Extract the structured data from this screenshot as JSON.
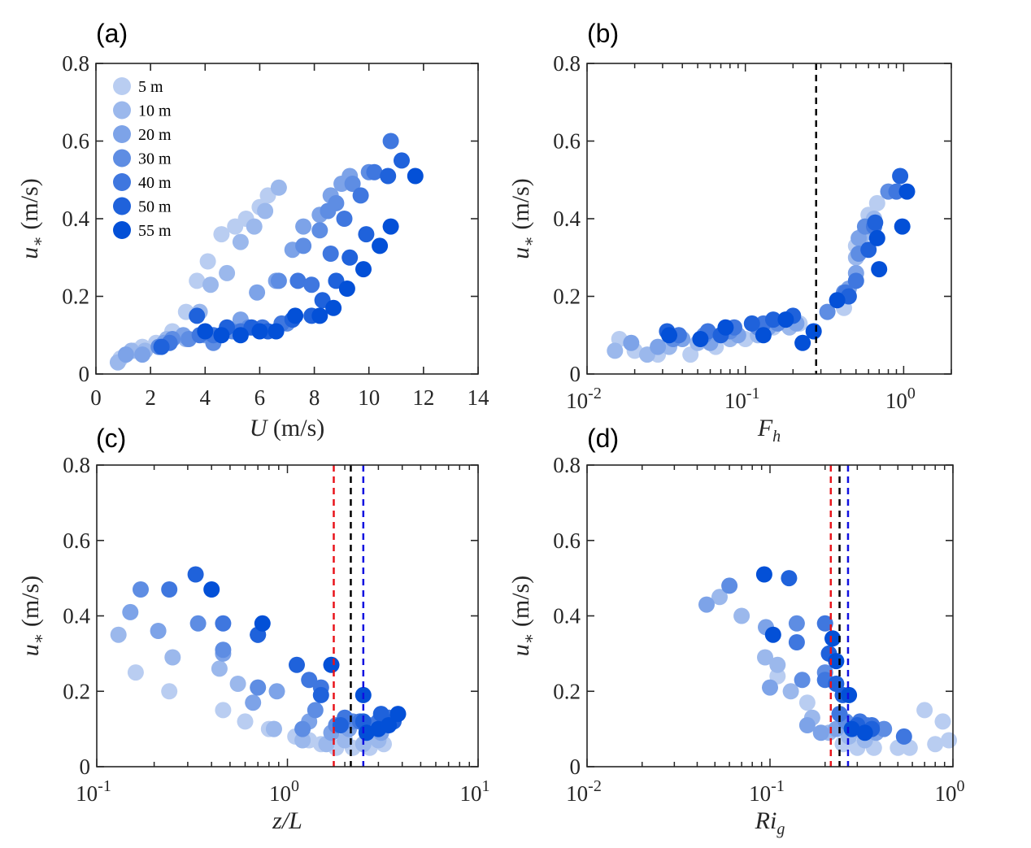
{
  "colors": {
    "series": [
      "#b9cdf1",
      "#9bb8ec",
      "#7da3e8",
      "#5e8de3",
      "#3f77df",
      "#1f62db",
      "#0350d7"
    ],
    "axis": "#262626",
    "line_red": "#e8141b",
    "line_black": "#000000",
    "line_blue": "#1010e0"
  },
  "chart_data": [
    {
      "id": "a",
      "type": "scatter",
      "panel_label": "(a)",
      "xlabel": "U (m/s)",
      "xlabel_italic": "U",
      "xlabel_rest": " (m/s)",
      "ylabel": "u* (m/s)",
      "xscale": "linear",
      "xlim": [
        0,
        14
      ],
      "ylim": [
        0,
        0.8
      ],
      "xticks": [
        0,
        2,
        4,
        6,
        8,
        10,
        12,
        14
      ],
      "xtick_labels": [
        "0",
        "2",
        "4",
        "6",
        "8",
        "10",
        "12",
        "14"
      ],
      "yticks": [
        0,
        0.2,
        0.4,
        0.6,
        0.8
      ],
      "ytick_labels": [
        "0",
        "0.2",
        "0.4",
        "0.6",
        "0.8"
      ],
      "legend": {
        "placement": "top-left",
        "entries": [
          "5 m",
          "10 m",
          "20 m",
          "30 m",
          "40 m",
          "50 m",
          "55 m"
        ]
      },
      "vlines": [],
      "series": [
        {
          "name": "5 m",
          "x": [
            0.9,
            1.4,
            1.7,
            2.2,
            2.8,
            3.3,
            3.7,
            4.1,
            4.6,
            5.1,
            5.5,
            6.0,
            6.3
          ],
          "y": [
            0.04,
            0.06,
            0.07,
            0.08,
            0.11,
            0.16,
            0.24,
            0.29,
            0.36,
            0.38,
            0.4,
            0.43,
            0.46
          ]
        },
        {
          "name": "10 m",
          "x": [
            0.8,
            1.3,
            1.8,
            2.6,
            3.3,
            3.8,
            4.2,
            4.8,
            5.3,
            5.8,
            6.2,
            6.7
          ],
          "y": [
            0.03,
            0.06,
            0.06,
            0.09,
            0.09,
            0.16,
            0.23,
            0.26,
            0.34,
            0.38,
            0.42,
            0.48
          ]
        },
        {
          "name": "20 m",
          "x": [
            1.1,
            1.7,
            2.5,
            3.2,
            4.0,
            5.3,
            5.9,
            6.6,
            7.2,
            7.6,
            8.2,
            8.6,
            9.0,
            9.3
          ],
          "y": [
            0.05,
            0.05,
            0.08,
            0.1,
            0.1,
            0.14,
            0.21,
            0.24,
            0.32,
            0.38,
            0.41,
            0.46,
            0.49,
            0.51
          ]
        },
        {
          "name": "30 m",
          "x": [
            2.3,
            2.8,
            3.4,
            4.3,
            5.0,
            5.6,
            6.7,
            7.0,
            7.6,
            8.2,
            8.5,
            8.8,
            9.4,
            10.0
          ],
          "y": [
            0.07,
            0.09,
            0.09,
            0.08,
            0.11,
            0.12,
            0.24,
            0.13,
            0.33,
            0.37,
            0.42,
            0.44,
            0.49,
            0.52
          ]
        },
        {
          "name": "40 m",
          "x": [
            2.7,
            3.8,
            4.3,
            5.3,
            6.1,
            6.8,
            7.4,
            7.9,
            8.6,
            9.1,
            9.7,
            10.2,
            10.8
          ],
          "y": [
            0.08,
            0.1,
            0.1,
            0.11,
            0.12,
            0.13,
            0.24,
            0.23,
            0.31,
            0.4,
            0.46,
            0.52,
            0.6
          ]
        },
        {
          "name": "50 m",
          "x": [
            2.4,
            3.7,
            4.8,
            5.7,
            6.3,
            7.2,
            7.9,
            8.3,
            8.8,
            9.3,
            9.9,
            10.7,
            11.2
          ],
          "y": [
            0.07,
            0.15,
            0.12,
            0.12,
            0.11,
            0.14,
            0.15,
            0.19,
            0.24,
            0.3,
            0.36,
            0.51,
            0.55
          ]
        },
        {
          "name": "55 m",
          "x": [
            4.0,
            4.6,
            5.3,
            6.0,
            6.6,
            7.3,
            8.2,
            8.7,
            9.2,
            9.8,
            10.4,
            10.8,
            11.7
          ],
          "y": [
            0.11,
            0.1,
            0.1,
            0.11,
            0.11,
            0.15,
            0.15,
            0.17,
            0.22,
            0.27,
            0.33,
            0.38,
            0.51
          ]
        }
      ]
    },
    {
      "id": "b",
      "type": "scatter",
      "panel_label": "(b)",
      "xlabel": "F_h",
      "xlabel_italic": "F",
      "xlabel_sub": "h",
      "ylabel": "u* (m/s)",
      "xscale": "log",
      "xlim": [
        0.01,
        2
      ],
      "ylim": [
        0,
        0.8
      ],
      "xticks": [
        0.01,
        0.1,
        1
      ],
      "xtick_base": [
        "10",
        "10",
        "10"
      ],
      "xtick_exp": [
        "-2",
        "-1",
        "0"
      ],
      "yticks": [
        0,
        0.2,
        0.4,
        0.6,
        0.8
      ],
      "ytick_labels": [
        "0",
        "0.2",
        "0.4",
        "0.6",
        "0.8"
      ],
      "vlines": [
        {
          "x": 0.28,
          "color": "black"
        }
      ],
      "series": [
        {
          "name": "5 m",
          "x": [
            0.016,
            0.02,
            0.028,
            0.045,
            0.065,
            0.1,
            0.15,
            0.22,
            0.42,
            0.5,
            0.6,
            0.68
          ],
          "y": [
            0.09,
            0.06,
            0.05,
            0.05,
            0.07,
            0.09,
            0.12,
            0.13,
            0.17,
            0.33,
            0.41,
            0.44
          ]
        },
        {
          "name": "10 m",
          "x": [
            0.015,
            0.024,
            0.033,
            0.05,
            0.08,
            0.12,
            0.19,
            0.44,
            0.5,
            0.56,
            0.65
          ],
          "y": [
            0.06,
            0.05,
            0.07,
            0.08,
            0.09,
            0.1,
            0.12,
            0.2,
            0.3,
            0.36,
            0.4
          ]
        },
        {
          "name": "20 m",
          "x": [
            0.019,
            0.028,
            0.04,
            0.06,
            0.09,
            0.14,
            0.21,
            0.45,
            0.5,
            0.52,
            0.62
          ],
          "y": [
            0.08,
            0.07,
            0.09,
            0.08,
            0.1,
            0.12,
            0.13,
            0.22,
            0.26,
            0.35,
            0.38
          ]
        },
        {
          "name": "30 m",
          "x": [
            0.035,
            0.055,
            0.08,
            0.12,
            0.16,
            0.33,
            0.42,
            0.52,
            0.57,
            0.8
          ],
          "y": [
            0.09,
            0.1,
            0.11,
            0.12,
            0.13,
            0.16,
            0.21,
            0.31,
            0.38,
            0.47
          ]
        },
        {
          "name": "40 m",
          "x": [
            0.038,
            0.058,
            0.085,
            0.13,
            0.18,
            0.43,
            0.5,
            0.65,
            0.9
          ],
          "y": [
            0.1,
            0.11,
            0.12,
            0.13,
            0.14,
            0.21,
            0.24,
            0.38,
            0.47
          ]
        },
        {
          "name": "50 m",
          "x": [
            0.032,
            0.07,
            0.11,
            0.15,
            0.2,
            0.45,
            0.6,
            0.66,
            0.95
          ],
          "y": [
            0.11,
            0.1,
            0.13,
            0.14,
            0.15,
            0.2,
            0.32,
            0.39,
            0.51
          ]
        },
        {
          "name": "55 m",
          "x": [
            0.033,
            0.052,
            0.075,
            0.13,
            0.18,
            0.23,
            0.27,
            0.38,
            0.68,
            0.7,
            0.98,
            1.05
          ],
          "y": [
            0.1,
            0.09,
            0.12,
            0.1,
            0.14,
            0.08,
            0.11,
            0.19,
            0.35,
            0.27,
            0.38,
            0.47
          ]
        }
      ]
    },
    {
      "id": "c",
      "type": "scatter",
      "panel_label": "(c)",
      "xlabel": "z/L",
      "xlabel_italic": "z/L",
      "ylabel": "u* (m/s)",
      "xscale": "log",
      "xlim": [
        0.1,
        10
      ],
      "ylim": [
        0,
        0.8
      ],
      "xticks": [
        0.1,
        1,
        10
      ],
      "xtick_base": [
        "10",
        "10",
        "10"
      ],
      "xtick_exp": [
        "-1",
        "0",
        "1"
      ],
      "yticks": [
        0,
        0.2,
        0.4,
        0.6,
        0.8
      ],
      "ytick_labels": [
        "0",
        "0.2",
        "0.4",
        "0.6",
        "0.8"
      ],
      "vlines": [
        {
          "x": 1.75,
          "color": "red"
        },
        {
          "x": 2.15,
          "color": "black"
        },
        {
          "x": 2.5,
          "color": "blue"
        }
      ],
      "series": [
        {
          "name": "5 m",
          "x": [
            0.16,
            0.24,
            0.46,
            0.6,
            0.8,
            0.85,
            1.1,
            1.3,
            1.5,
            1.8,
            2.2,
            2.7,
            3.2
          ],
          "y": [
            0.25,
            0.2,
            0.15,
            0.12,
            0.1,
            0.1,
            0.08,
            0.07,
            0.06,
            0.05,
            0.05,
            0.05,
            0.06
          ]
        },
        {
          "name": "10 m",
          "x": [
            0.13,
            0.25,
            0.44,
            0.55,
            0.85,
            1.2,
            1.6,
            2.0,
            2.5,
            3.0
          ],
          "y": [
            0.35,
            0.29,
            0.26,
            0.22,
            0.1,
            0.07,
            0.06,
            0.07,
            0.06,
            0.07
          ]
        },
        {
          "name": "20 m",
          "x": [
            0.15,
            0.21,
            0.46,
            0.66,
            0.88,
            1.3,
            1.7,
            2.1,
            2.6,
            3.1
          ],
          "y": [
            0.41,
            0.36,
            0.3,
            0.17,
            0.2,
            0.12,
            0.09,
            0.1,
            0.1,
            0.09
          ]
        },
        {
          "name": "30 m",
          "x": [
            0.17,
            0.34,
            0.46,
            0.7,
            1.2,
            1.4,
            1.8,
            2.2,
            2.7,
            3.2
          ],
          "y": [
            0.47,
            0.38,
            0.31,
            0.21,
            0.1,
            0.15,
            0.11,
            0.12,
            0.11,
            0.11
          ]
        },
        {
          "name": "40 m",
          "x": [
            0.24,
            0.46,
            0.7,
            1.3,
            1.5,
            2.0,
            2.4,
            3.0,
            3.4
          ],
          "y": [
            0.47,
            0.38,
            0.35,
            0.23,
            0.21,
            0.13,
            0.12,
            0.12,
            0.13
          ]
        },
        {
          "name": "50 m",
          "x": [
            0.33,
            0.7,
            1.12,
            1.5,
            1.9,
            2.5,
            3.1,
            3.6
          ],
          "y": [
            0.51,
            0.35,
            0.27,
            0.19,
            0.11,
            0.12,
            0.14,
            0.12
          ]
        },
        {
          "name": "55 m",
          "x": [
            0.4,
            0.74,
            1.7,
            2.5,
            2.6,
            3.0,
            3.4,
            3.8
          ],
          "y": [
            0.47,
            0.38,
            0.27,
            0.19,
            0.09,
            0.1,
            0.11,
            0.14
          ]
        }
      ]
    },
    {
      "id": "d",
      "type": "scatter",
      "panel_label": "(d)",
      "xlabel": "Ri_g",
      "xlabel_italic": "Ri",
      "xlabel_sub": "g",
      "ylabel": "u* (m/s)",
      "xscale": "log",
      "xlim": [
        0.01,
        1
      ],
      "ylim": [
        0,
        0.8
      ],
      "xticks": [
        0.01,
        0.1,
        1
      ],
      "xtick_base": [
        "10",
        "10",
        "10"
      ],
      "xtick_exp": [
        "-2",
        "-1",
        "0"
      ],
      "yticks": [
        0,
        0.2,
        0.4,
        0.6,
        0.8
      ],
      "ytick_labels": [
        "0",
        "0.2",
        "0.4",
        "0.6",
        "0.8"
      ],
      "vlines": [
        {
          "x": 0.215,
          "color": "red"
        },
        {
          "x": 0.24,
          "color": "black"
        },
        {
          "x": 0.267,
          "color": "blue"
        }
      ],
      "series": [
        {
          "name": "5 m",
          "x": [
            0.11,
            0.16,
            0.25,
            0.3,
            0.37,
            0.5,
            0.7,
            0.8,
            0.88,
            0.95,
            0.58
          ],
          "y": [
            0.24,
            0.17,
            0.06,
            0.05,
            0.05,
            0.05,
            0.15,
            0.06,
            0.12,
            0.07,
            0.05
          ]
        },
        {
          "name": "10 m",
          "x": [
            0.053,
            0.07,
            0.094,
            0.11,
            0.13,
            0.17,
            0.21,
            0.27,
            0.33
          ],
          "y": [
            0.45,
            0.4,
            0.29,
            0.27,
            0.2,
            0.13,
            0.09,
            0.08,
            0.07
          ]
        },
        {
          "name": "20 m",
          "x": [
            0.045,
            0.095,
            0.1,
            0.16,
            0.19,
            0.23,
            0.3,
            0.38
          ],
          "y": [
            0.43,
            0.37,
            0.21,
            0.11,
            0.09,
            0.1,
            0.1,
            0.09
          ]
        },
        {
          "name": "30 m",
          "x": [
            0.06,
            0.14,
            0.15,
            0.2,
            0.26,
            0.34,
            0.42
          ],
          "y": [
            0.48,
            0.38,
            0.23,
            0.25,
            0.12,
            0.11,
            0.1
          ]
        },
        {
          "name": "40 m",
          "x": [
            0.14,
            0.2,
            0.2,
            0.24,
            0.31,
            0.36,
            0.54
          ],
          "y": [
            0.33,
            0.38,
            0.23,
            0.14,
            0.12,
            0.11,
            0.08
          ]
        },
        {
          "name": "50 m",
          "x": [
            0.127,
            0.21,
            0.23,
            0.25,
            0.3,
            0.36
          ],
          "y": [
            0.5,
            0.3,
            0.22,
            0.19,
            0.11,
            0.1
          ]
        },
        {
          "name": "55 m",
          "x": [
            0.093,
            0.104,
            0.22,
            0.23,
            0.27,
            0.28,
            0.33
          ],
          "y": [
            0.51,
            0.35,
            0.34,
            0.28,
            0.19,
            0.1,
            0.09
          ]
        }
      ]
    }
  ]
}
